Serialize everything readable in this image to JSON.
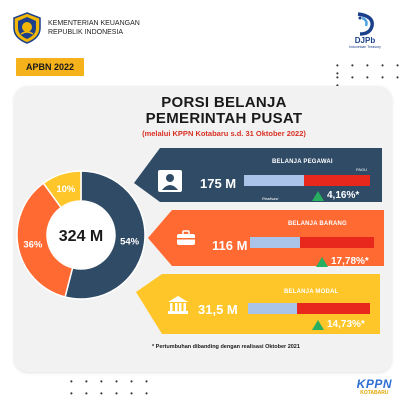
{
  "header": {
    "ministry_line1": "KEMENTERIAN KEUANGAN",
    "ministry_line2": "REPUBLIK INDONESIA",
    "djpb_name": "DJPb",
    "djpb_sub": "Indonesian Treasury"
  },
  "tag": "APBN 2022",
  "title": {
    "line1": "PORSI BELANJA",
    "line2": "PEMERINTAH PUSAT",
    "subtitle": "(melalui KPPN Kotabaru s.d. 31 Oktober 2022)"
  },
  "chart_data": {
    "type": "pie",
    "center_label": "324 M",
    "slices": [
      {
        "label": "Belanja Pegawai",
        "value": 54,
        "display": "54%",
        "color": "#2f4b66"
      },
      {
        "label": "Belanja Barang",
        "value": 36,
        "display": "36%",
        "color": "#ff6a33"
      },
      {
        "label": "Belanja Modal",
        "value": 10,
        "display": "10%",
        "color": "#ffc629"
      }
    ]
  },
  "categories": [
    {
      "name": "BELANJA PEGAWAI",
      "amount": "175 M",
      "realized_fraction": 0.48,
      "growth": "4,16%*",
      "growth_color": "#ffffff",
      "band_color": "#2f4b66",
      "icon": "person-icon"
    },
    {
      "name": "BELANJA BARANG",
      "amount": "116 M",
      "realized_fraction": 0.4,
      "growth": "17,78%*",
      "growth_color": "#ffffff",
      "band_color": "#ff6a33",
      "icon": "briefcase-icon"
    },
    {
      "name": "BELANJA MODAL",
      "amount": "31,5 M",
      "realized_fraction": 0.4,
      "growth": "14,73%*",
      "growth_color": "#ffffff",
      "band_color": "#ffc629",
      "icon": "building-icon"
    }
  ],
  "legend": {
    "pagu": "PAGU",
    "realisasi": "Realisasi"
  },
  "footnote": "* Pertumbuhan dibanding dengan realisasi Oktober 2021",
  "footer": {
    "kppn": "KPPN",
    "kppn_sub": "KOTABARU"
  }
}
